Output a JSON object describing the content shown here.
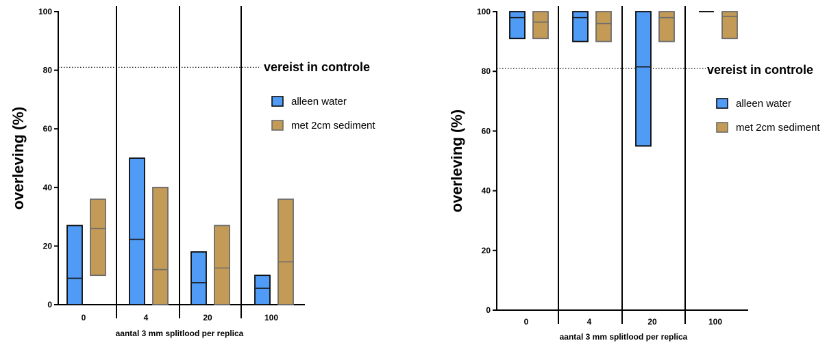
{
  "colors": {
    "alleen_water_fill": "#4f9bf5",
    "alleen_water_stroke": "#0a0a0a",
    "met_sediment_fill": "#c49a57",
    "met_sediment_stroke": "#6b6b6b"
  },
  "chart_data": [
    {
      "type": "bar",
      "bar_style": "floating min-max with mean line",
      "categories": [
        "0",
        "4",
        "20",
        "100"
      ],
      "xlabel": "aantal 3 mm splitlood per replica",
      "ylabel": "overleving (%)",
      "ylim": [
        0,
        100
      ],
      "yticks": [
        "0",
        "20",
        "40",
        "60",
        "80",
        "100"
      ],
      "reference_line": {
        "y": 81,
        "style": "dotted",
        "label": "vereist in controle"
      },
      "legend": {
        "placement": "right",
        "entries": [
          "alleen water",
          "met 2cm sediment"
        ]
      },
      "series": [
        {
          "name": "alleen water",
          "min": [
            0,
            0,
            0,
            0
          ],
          "max": [
            27,
            50,
            18,
            10
          ],
          "mean": [
            9,
            22.3,
            7.5,
            5.6
          ]
        },
        {
          "name": "met 2cm sediment",
          "min": [
            10,
            0,
            0,
            0
          ],
          "max": [
            36,
            40,
            27,
            36
          ],
          "mean": [
            26,
            12,
            12.5,
            14.6
          ]
        }
      ]
    },
    {
      "type": "bar",
      "bar_style": "floating min-max with mean line",
      "categories": [
        "0",
        "4",
        "20",
        "100"
      ],
      "xlabel": "aantal 3 mm splitlood per replica",
      "ylabel": "overleving (%)",
      "ylim": [
        0,
        100
      ],
      "yticks": [
        "0",
        "20",
        "40",
        "60",
        "80",
        "100"
      ],
      "reference_line": {
        "y": 81,
        "style": "dotted",
        "label": "vereist in controle"
      },
      "legend": {
        "placement": "right",
        "entries": [
          "alleen water",
          "met 2cm sediment"
        ]
      },
      "series": [
        {
          "name": "alleen water",
          "min": [
            91,
            90,
            55,
            100
          ],
          "max": [
            100,
            100,
            100,
            100
          ],
          "mean": [
            98,
            98,
            81.5,
            100
          ]
        },
        {
          "name": "met 2cm sediment",
          "min": [
            91,
            90,
            90,
            91
          ],
          "max": [
            100,
            100,
            100,
            100
          ],
          "mean": [
            96.5,
            96,
            98,
            98.4
          ]
        }
      ]
    }
  ]
}
